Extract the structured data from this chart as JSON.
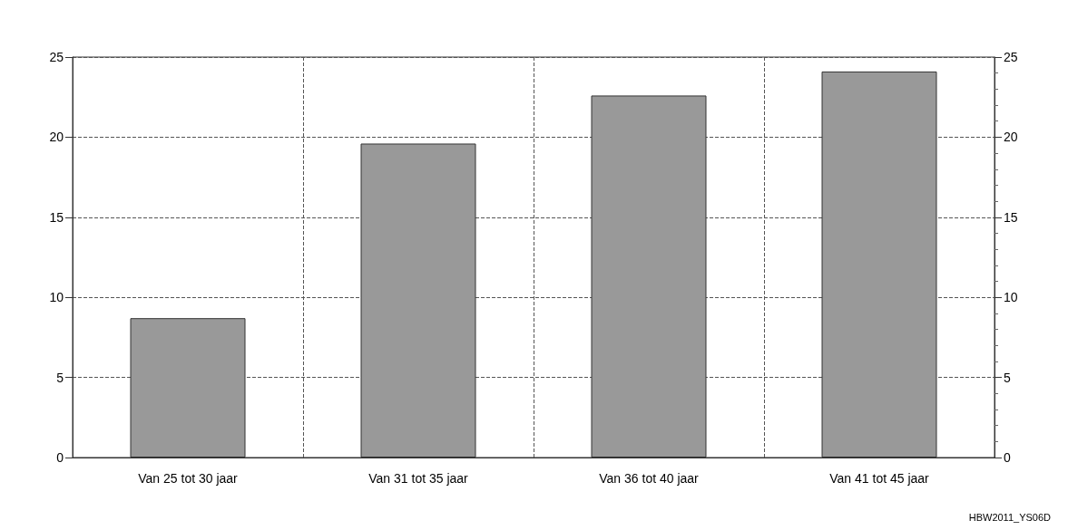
{
  "chart_data": {
    "type": "bar",
    "categories": [
      "Van 25 tot 30 jaar",
      "Van 31 tot 35 jaar",
      "Van 36 tot 40 jaar",
      "Van 41 tot 45 jaar"
    ],
    "values": [
      8.7,
      19.6,
      22.6,
      24.1
    ],
    "color": "#999999",
    "ylim": [
      0,
      25
    ],
    "yticks": [
      0,
      5,
      10,
      15,
      20,
      25
    ],
    "y2lim": [
      0,
      25
    ],
    "y2ticks": [
      0,
      5,
      10,
      15,
      20,
      25
    ],
    "grid": true,
    "annotations": [
      "HBW2011_YS06D"
    ]
  }
}
